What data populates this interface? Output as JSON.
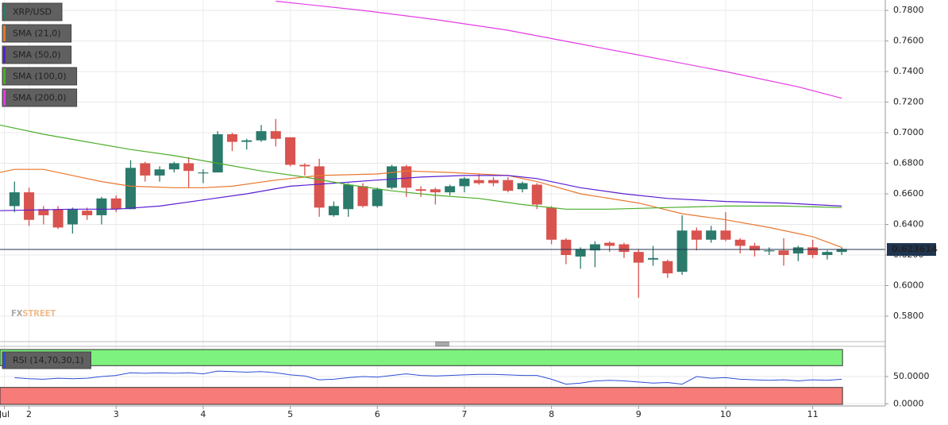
{
  "chart_data": [
    {
      "type": "candlestick",
      "name": "XRP/USD",
      "up_color": "#2b7a6b",
      "down_color": "#d9534f",
      "x": [
        1,
        2,
        3,
        4,
        5,
        6,
        7,
        8,
        9,
        10,
        11,
        12,
        13,
        14,
        15,
        16,
        17,
        18,
        19,
        20,
        21,
        22,
        23,
        24,
        25,
        26,
        27,
        28,
        29,
        30,
        31,
        32,
        33,
        34,
        35,
        36,
        37,
        38,
        39,
        40,
        41,
        42,
        43,
        44,
        45,
        46,
        47,
        48,
        49,
        50,
        51,
        52,
        53,
        54,
        55,
        56,
        57,
        58
      ],
      "open": [
        0.652,
        0.661,
        0.65,
        0.65,
        0.64,
        0.649,
        0.646,
        0.657,
        0.65,
        0.68,
        0.672,
        0.676,
        0.68,
        0.674,
        0.674,
        0.699,
        0.694,
        0.695,
        0.701,
        0.697,
        0.679,
        0.678,
        0.646,
        0.65,
        0.665,
        0.652,
        0.664,
        0.678,
        0.663,
        0.663,
        0.661,
        0.665,
        0.669,
        0.669,
        0.669,
        0.663,
        0.666,
        0.651,
        0.63,
        0.619,
        0.623,
        0.628,
        0.627,
        0.622,
        0.617,
        0.616,
        0.609,
        0.636,
        0.63,
        0.636,
        0.63,
        0.626,
        0.623,
        0.623,
        0.621,
        0.625,
        0.62,
        0.622
      ],
      "high": [
        0.668,
        0.664,
        0.652,
        0.652,
        0.651,
        0.651,
        0.658,
        0.659,
        0.682,
        0.681,
        0.678,
        0.681,
        0.684,
        0.676,
        0.701,
        0.7,
        0.696,
        0.705,
        0.709,
        0.697,
        0.68,
        0.683,
        0.655,
        0.667,
        0.667,
        0.664,
        0.679,
        0.679,
        0.665,
        0.664,
        0.666,
        0.671,
        0.673,
        0.671,
        0.671,
        0.668,
        0.667,
        0.652,
        0.631,
        0.625,
        0.629,
        0.629,
        0.628,
        0.624,
        0.626,
        0.617,
        0.646,
        0.638,
        0.639,
        0.648,
        0.631,
        0.628,
        0.625,
        0.631,
        0.626,
        0.63,
        0.623,
        0.625
      ],
      "low": [
        0.648,
        0.639,
        0.64,
        0.637,
        0.634,
        0.643,
        0.64,
        0.648,
        0.65,
        0.668,
        0.668,
        0.674,
        0.664,
        0.667,
        0.674,
        0.688,
        0.689,
        0.694,
        0.691,
        0.678,
        0.672,
        0.645,
        0.645,
        0.645,
        0.651,
        0.651,
        0.663,
        0.658,
        0.658,
        0.653,
        0.659,
        0.661,
        0.666,
        0.665,
        0.661,
        0.661,
        0.65,
        0.627,
        0.614,
        0.611,
        0.612,
        0.622,
        0.618,
        0.592,
        0.613,
        0.605,
        0.607,
        0.623,
        0.628,
        0.629,
        0.621,
        0.619,
        0.62,
        0.613,
        0.616,
        0.618,
        0.617,
        0.62
      ],
      "close": [
        0.661,
        0.643,
        0.646,
        0.638,
        0.65,
        0.646,
        0.657,
        0.65,
        0.677,
        0.672,
        0.676,
        0.68,
        0.675,
        0.674,
        0.699,
        0.694,
        0.695,
        0.701,
        0.696,
        0.679,
        0.678,
        0.651,
        0.652,
        0.666,
        0.652,
        0.663,
        0.678,
        0.664,
        0.662,
        0.661,
        0.665,
        0.67,
        0.667,
        0.667,
        0.662,
        0.667,
        0.653,
        0.63,
        0.62,
        0.624,
        0.627,
        0.626,
        0.622,
        0.615,
        0.618,
        0.608,
        0.636,
        0.63,
        0.636,
        0.63,
        0.626,
        0.623,
        0.623,
        0.62,
        0.625,
        0.62,
        0.622,
        0.624
      ],
      "series": [
        {
          "name": "SMA (21,0)",
          "color": "#e8772e",
          "x": [
            0,
            1,
            3,
            5,
            7,
            9,
            12,
            14,
            16,
            19,
            22,
            26,
            28,
            31,
            35,
            37,
            40,
            44,
            47,
            50,
            53,
            56,
            58
          ],
          "values": [
            0.674,
            0.676,
            0.676,
            0.672,
            0.668,
            0.665,
            0.664,
            0.664,
            0.665,
            0.669,
            0.672,
            0.673,
            0.675,
            0.674,
            0.672,
            0.668,
            0.66,
            0.654,
            0.647,
            0.643,
            0.638,
            0.632,
            0.625
          ]
        },
        {
          "name": "SMA (50,0)",
          "color": "#5a1fd1",
          "x": [
            0,
            5,
            8,
            11,
            14,
            17,
            20,
            23,
            26,
            29,
            32,
            35,
            37,
            40,
            43,
            46,
            50,
            54,
            58
          ],
          "values": [
            0.649,
            0.65,
            0.65,
            0.652,
            0.656,
            0.66,
            0.665,
            0.667,
            0.669,
            0.671,
            0.672,
            0.672,
            0.67,
            0.664,
            0.66,
            0.657,
            0.655,
            0.654,
            0.652
          ]
        },
        {
          "name": "SMA (100,0)",
          "color": "#4cae2a",
          "x": [
            0,
            3,
            6,
            9,
            12,
            15,
            18,
            21,
            24,
            27,
            30,
            33,
            36,
            39,
            42,
            46,
            50,
            54,
            58
          ],
          "values": [
            0.705,
            0.699,
            0.694,
            0.689,
            0.685,
            0.68,
            0.675,
            0.671,
            0.666,
            0.662,
            0.659,
            0.657,
            0.653,
            0.65,
            0.65,
            0.651,
            0.652,
            0.652,
            0.651
          ]
        },
        {
          "name": "SMA (200,0)",
          "color": "#e43be4",
          "x": [
            19,
            25,
            30,
            35,
            40,
            45,
            50,
            55,
            58
          ],
          "values": [
            0.786,
            0.78,
            0.774,
            0.767,
            0.758,
            0.749,
            0.74,
            0.73,
            0.7225
          ]
        }
      ],
      "last_price": 0.623614,
      "xlim": [
        0,
        61
      ],
      "xticks": [
        {
          "value": 0.3,
          "label": "Jul"
        },
        2,
        8,
        14,
        20,
        26,
        32,
        38,
        44,
        50,
        56
      ],
      "xtick_labels": [
        "Jul",
        "2",
        "3",
        "4",
        "5",
        "6",
        "7",
        "8",
        "9",
        "10",
        "11"
      ],
      "ylim": [
        0.5644,
        0.7868
      ],
      "yticks": [
        {
          "value": 0.58,
          "label": "0.5800"
        },
        {
          "value": 0.6,
          "label": "0.6000"
        },
        {
          "value": 0.62,
          "label": "0.6200"
        },
        {
          "value": 0.64,
          "label": "0.6400"
        },
        {
          "value": 0.66,
          "label": "0.6600"
        },
        {
          "value": 0.68,
          "label": "0.6800"
        },
        {
          "value": 0.7,
          "label": "0.7000"
        },
        {
          "value": 0.72,
          "label": "0.7200"
        },
        {
          "value": 0.74,
          "label": "0.7400"
        },
        {
          "value": 0.76,
          "label": "0.7600"
        },
        {
          "value": 0.78,
          "label": "0.7800"
        }
      ],
      "grid": true,
      "watermark": [
        "FX",
        "STREET"
      ]
    },
    {
      "type": "line",
      "title": "RSI (14,70,30,1)",
      "color": "#2f4fd6",
      "overbought": 70,
      "oversold": 30,
      "x": [
        1,
        2,
        3,
        4,
        5,
        6,
        7,
        8,
        9,
        10,
        11,
        12,
        13,
        14,
        15,
        16,
        17,
        18,
        19,
        20,
        21,
        22,
        23,
        24,
        25,
        26,
        27,
        28,
        29,
        30,
        31,
        32,
        33,
        34,
        35,
        36,
        37,
        38,
        39,
        40,
        41,
        42,
        43,
        44,
        45,
        46,
        47,
        48,
        49,
        50,
        51,
        52,
        53,
        54,
        55,
        56,
        57,
        58
      ],
      "values": [
        48,
        46,
        45,
        47,
        46,
        47,
        50,
        52,
        57,
        56,
        57,
        56,
        57,
        55,
        60,
        59,
        58,
        59,
        57,
        53,
        51,
        44,
        45,
        48,
        50,
        49,
        52,
        55,
        52,
        51,
        52,
        53,
        54,
        54,
        53,
        52,
        52,
        45,
        36,
        38,
        42,
        43,
        42,
        40,
        38,
        39,
        36,
        50,
        47,
        48,
        45,
        44,
        43,
        44,
        42,
        44,
        43,
        45
      ],
      "ylim": [
        -4,
        104
      ],
      "yticks": [
        {
          "value": 50,
          "label": "50.0000"
        },
        {
          "value": 0,
          "label": "0.0000"
        }
      ]
    }
  ]
}
